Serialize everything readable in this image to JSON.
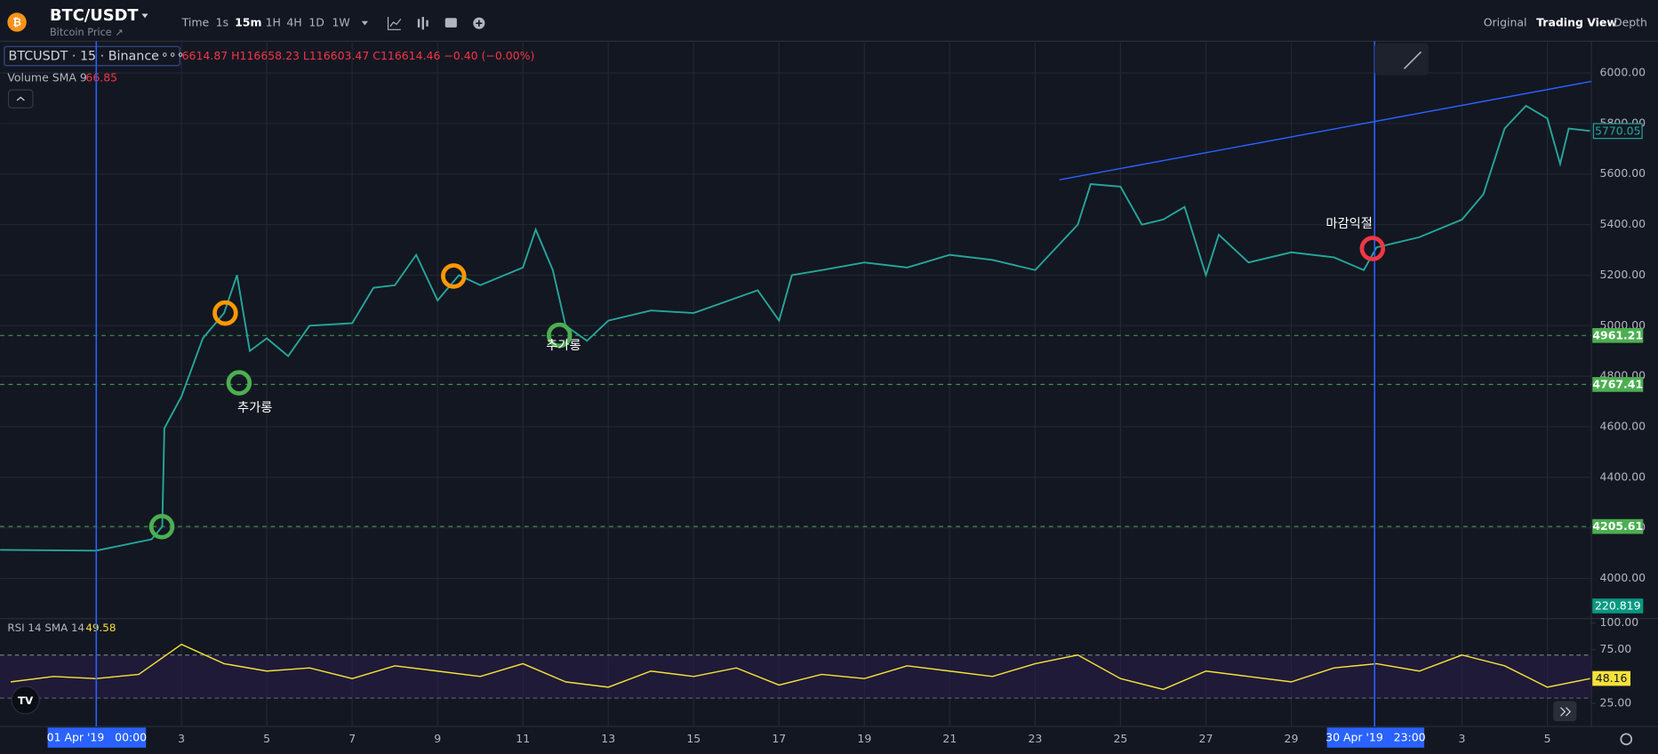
{
  "header": {
    "symbol": "BTC/USDT",
    "subtitle": "Bitcoin Price ↗",
    "intervals": [
      "Time",
      "1s",
      "15m",
      "1H",
      "4H",
      "1D",
      "1W"
    ],
    "views": [
      "Original",
      "Trading View",
      "Depth"
    ]
  },
  "legend": {
    "symbol": "BTCUSDT · 15 · Binance",
    "ohlc": "6614.87  H116658.23  L116603.47  C116614.46  −0.40 (−0.00%)",
    "volume": "Volume SMA 9",
    "volume_value": "66.85",
    "volume_tag": 220.819,
    "rsi": "RSI 14 SMA 14",
    "rsi_value": "49.58"
  },
  "annotations": [
    "추가롱",
    "추가롱",
    "마감익절"
  ],
  "crosshair_labels": [
    "01 Apr '19   00:00",
    "30 Apr '19   23:00"
  ],
  "chart_data": [
    {
      "type": "line",
      "color": "#26a69a",
      "x": [
        -2.25,
        0,
        1.3,
        1.55,
        1.6,
        2,
        2.5,
        3,
        3.3,
        3.6,
        4,
        4.5,
        5,
        6,
        6.5,
        7,
        7.5,
        8,
        8.5,
        9,
        10,
        10.3,
        10.7,
        11,
        11.5,
        12,
        13,
        14,
        15,
        15.5,
        16,
        16.3,
        17,
        18,
        19,
        20,
        21,
        22,
        23,
        23.3,
        24,
        24.5,
        25,
        25.5,
        26,
        26.3,
        27,
        28,
        29,
        29.7,
        30,
        31,
        32,
        32.5,
        33,
        33.5,
        34,
        34.3,
        34.5,
        35
      ],
      "values": [
        4113,
        4110,
        4155,
        4205,
        4594,
        4720,
        4950,
        5050,
        5200,
        4900,
        4950,
        4880,
        5000,
        5010,
        5150,
        5160,
        5280,
        5100,
        5200,
        5160,
        5230,
        5380,
        5220,
        5000,
        4940,
        5020,
        5060,
        5050,
        5110,
        5140,
        5020,
        5200,
        5220,
        5250,
        5230,
        5280,
        5260,
        5220,
        5400,
        5560,
        5550,
        5400,
        5420,
        5470,
        5200,
        5360,
        5250,
        5290,
        5270,
        5220,
        5310,
        5350,
        5420,
        5520,
        5780,
        5870,
        5820,
        5640,
        5780,
        5770
      ],
      "xlim": [
        -2.25,
        35.03
      ],
      "xticks": [
        {
          "value": 2,
          "label": "3"
        },
        {
          "value": 4,
          "label": "5"
        },
        {
          "value": 6,
          "label": "7"
        },
        {
          "value": 8,
          "label": "9"
        },
        {
          "value": 10,
          "label": "11"
        },
        {
          "value": 12,
          "label": "13"
        },
        {
          "value": 14,
          "label": "15"
        },
        {
          "value": 16,
          "label": "17"
        },
        {
          "value": 18,
          "label": "19"
        },
        {
          "value": 20,
          "label": "21"
        },
        {
          "value": 22,
          "label": "23"
        },
        {
          "value": 24,
          "label": "25"
        },
        {
          "value": 26,
          "label": "27"
        },
        {
          "value": 28,
          "label": "29"
        },
        {
          "value": 32,
          "label": "3"
        },
        {
          "value": 34,
          "label": "5"
        }
      ],
      "ylim": [
        3862,
        6121
      ],
      "yticks": [
        {
          "value": 4000,
          "label": "4000.00"
        },
        {
          "value": 4200,
          "label": "4200.00"
        },
        {
          "value": 4400,
          "label": "4400.00"
        },
        {
          "value": 4600,
          "label": "4600.00"
        },
        {
          "value": 4800,
          "label": "4800.00"
        },
        {
          "value": 5000,
          "label": "5000.00"
        },
        {
          "value": 5200,
          "label": "5200.00"
        },
        {
          "value": 5400,
          "label": "5400.00"
        },
        {
          "value": 5600,
          "label": "5600.00"
        },
        {
          "value": 5800,
          "label": "5800.00"
        },
        {
          "value": 6000,
          "label": "6000.00"
        }
      ],
      "last_price": 5770.05,
      "price_levels": [
        4961.21,
        4767.41,
        4205.61
      ],
      "grid": true
    },
    {
      "type": "line",
      "color": "#f5e13b",
      "x": [
        -2,
        -1,
        0,
        1,
        2,
        3,
        4,
        5,
        6,
        7,
        8,
        9,
        10,
        11,
        12,
        13,
        14,
        15,
        16,
        17,
        18,
        19,
        20,
        21,
        22,
        23,
        24,
        25,
        26,
        27,
        28,
        29,
        30,
        31,
        32,
        33,
        34,
        35
      ],
      "values": [
        45,
        50,
        48,
        52,
        80,
        62,
        55,
        58,
        48,
        60,
        55,
        50,
        62,
        45,
        40,
        55,
        50,
        58,
        42,
        52,
        48,
        60,
        55,
        50,
        62,
        70,
        48,
        38,
        55,
        50,
        45,
        58,
        62,
        55,
        70,
        60,
        40,
        48
      ],
      "ylim": [
        5.3,
        104
      ],
      "yticks": [
        {
          "value": 25,
          "label": "25.00"
        },
        {
          "value": 75,
          "label": "75.00"
        },
        {
          "value": 100,
          "label": "100.00"
        }
      ],
      "levels": [
        30,
        70
      ],
      "last_value": 48.16
    }
  ]
}
